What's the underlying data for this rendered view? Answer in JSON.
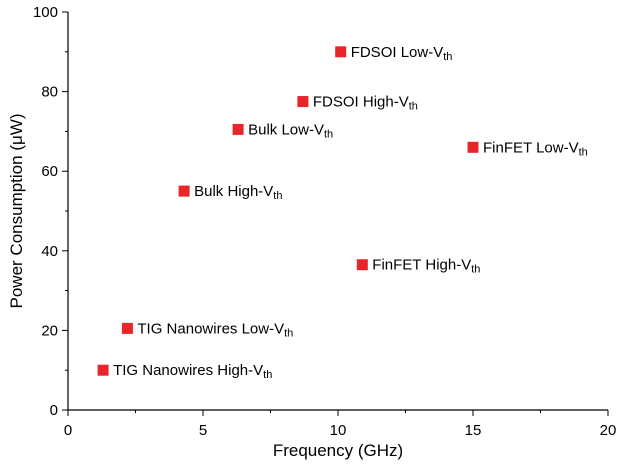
{
  "chart_data": {
    "type": "scatter",
    "title": "",
    "xlabel": "Frequency (GHz)",
    "ylabel": "Power Consumption (μW)",
    "xlim": [
      0,
      20
    ],
    "ylim": [
      0,
      100
    ],
    "x_ticks": [
      "0",
      "5",
      "10",
      "15",
      "20"
    ],
    "y_ticks": [
      "0",
      "20",
      "40",
      "60",
      "80",
      "100"
    ],
    "grid": false,
    "legend": "none",
    "marker_color": "#e8262a",
    "points": [
      {
        "label": "FDSOI Low-V",
        "sub": "th",
        "x": 10.1,
        "y": 90.0
      },
      {
        "label": "FDSOI High-V",
        "sub": "th",
        "x": 8.7,
        "y": 77.5
      },
      {
        "label": "Bulk Low-V",
        "sub": "th",
        "x": 6.3,
        "y": 70.5
      },
      {
        "label": "FinFET Low-V",
        "sub": "th",
        "x": 15.0,
        "y": 66.0
      },
      {
        "label": "Bulk High-V",
        "sub": "th",
        "x": 4.3,
        "y": 55.0
      },
      {
        "label": "FinFET High-V",
        "sub": "th",
        "x": 10.9,
        "y": 36.5
      },
      {
        "label": "TIG Nanowires Low-V",
        "sub": "th",
        "x": 2.2,
        "y": 20.5
      },
      {
        "label": "TIG Nanowires High-V",
        "sub": "th",
        "x": 1.3,
        "y": 10.0
      }
    ]
  }
}
